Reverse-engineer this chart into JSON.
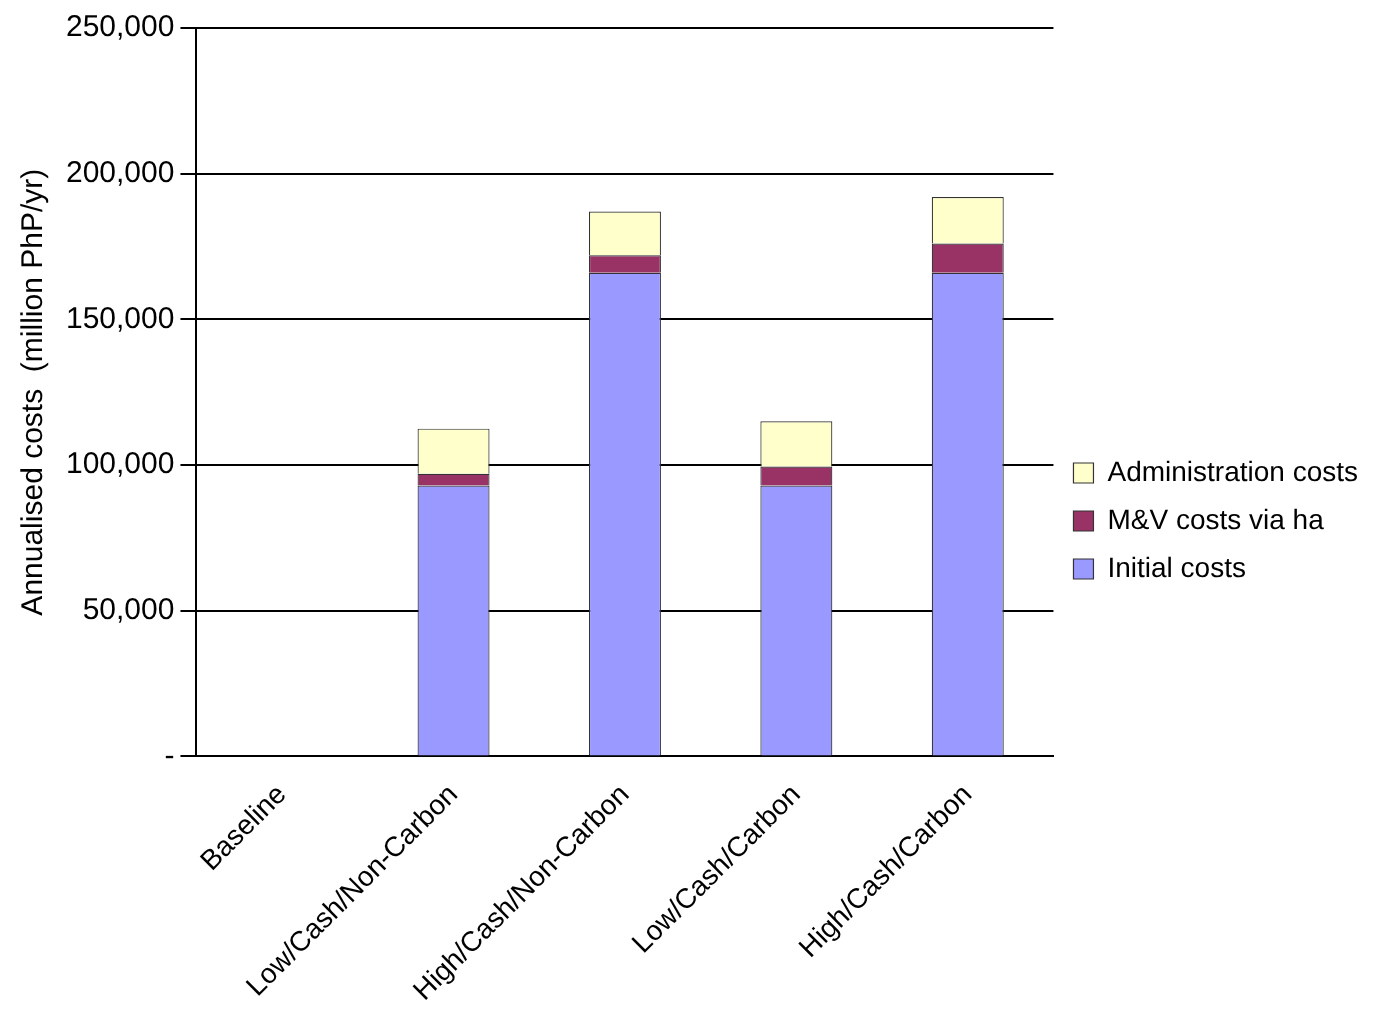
{
  "chart_data": {
    "type": "bar",
    "stacked": true,
    "ylabel": "Annualised costs  (million PhP/yr)",
    "categories": [
      "Baseline",
      "Low/Cash/Non-Carbon",
      "High/Cash/Non-Carbon",
      "Low/Cash/Carbon",
      "High/Cash/Carbon"
    ],
    "series": [
      {
        "name": "Initial costs",
        "color": "#9999ff",
        "values": [
          0,
          93000,
          166000,
          93000,
          166000
        ]
      },
      {
        "name": "M&V costs via ha",
        "color": "#993366",
        "values": [
          0,
          4000,
          6000,
          6500,
          10000
        ]
      },
      {
        "name": "Administration costs",
        "color": "#ffffcc",
        "values": [
          0,
          15500,
          15000,
          15500,
          16000
        ]
      }
    ],
    "ylim": [
      0,
      250000
    ],
    "yticks": [
      {
        "value": 0,
        "label": "-"
      },
      {
        "value": 50000,
        "label": "50,000"
      },
      {
        "value": 100000,
        "label": "100,000"
      },
      {
        "value": 150000,
        "label": "150,000"
      },
      {
        "value": 200000,
        "label": "200,000"
      },
      {
        "value": 250000,
        "label": "250,000"
      }
    ],
    "grid": "y",
    "legend": "right"
  }
}
